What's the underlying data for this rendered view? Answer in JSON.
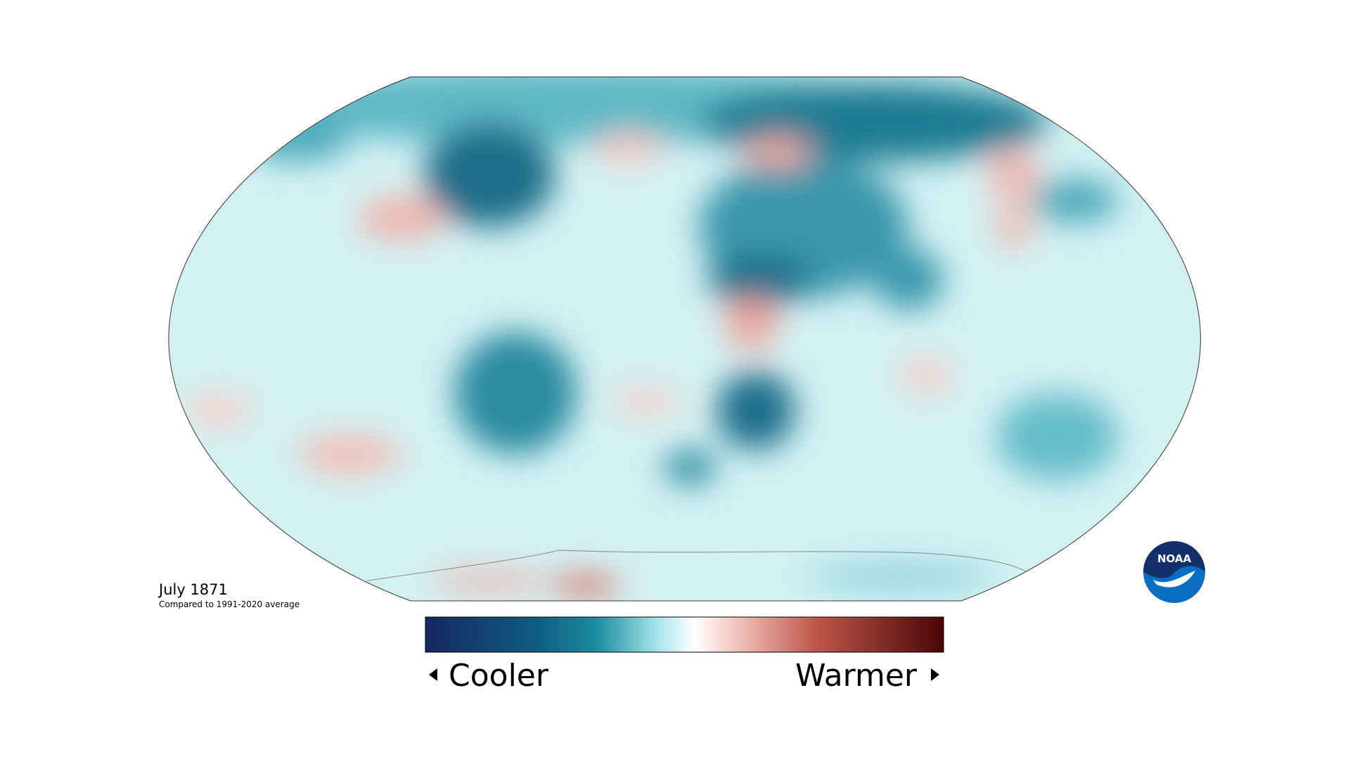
{
  "caption": {
    "title": "July 1871",
    "subtitle": "Compared to 1991-2020 average"
  },
  "legend": {
    "low_label": "Cooler",
    "high_label": "Warmer"
  },
  "logo": {
    "text": "NOAA"
  }
}
